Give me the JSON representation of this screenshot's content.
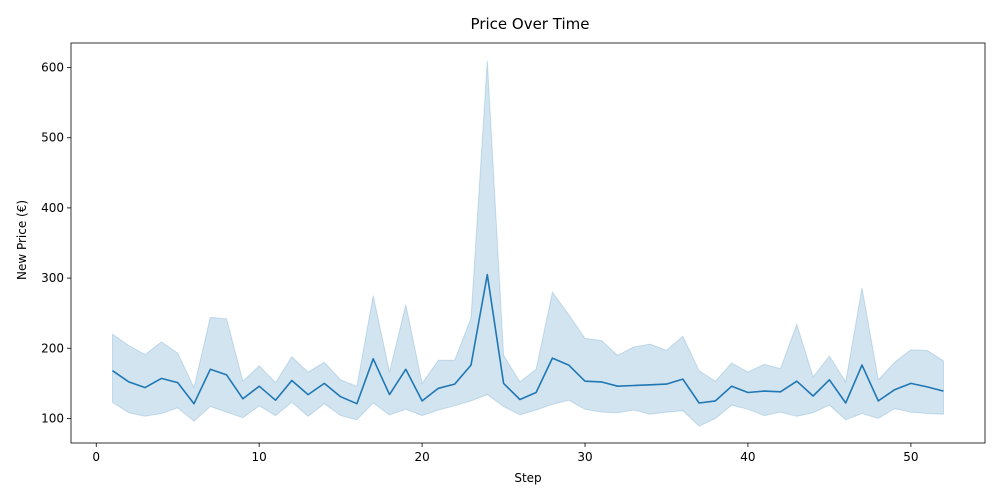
{
  "chart_data": {
    "type": "line",
    "title": "Price Over Time",
    "xlabel": "Step",
    "ylabel": "New Price (€)",
    "xlim": [
      -1.55,
      54.55
    ],
    "ylim": [
      65,
      635
    ],
    "xticks": [
      0,
      10,
      20,
      30,
      40,
      50
    ],
    "yticks": [
      100,
      200,
      300,
      400,
      500,
      600
    ],
    "grid": false,
    "line_color": "#1f77b4",
    "band_color": "#1f77b4",
    "x": [
      1,
      2,
      3,
      4,
      5,
      6,
      7,
      8,
      9,
      10,
      11,
      12,
      13,
      14,
      15,
      16,
      17,
      18,
      19,
      20,
      21,
      22,
      23,
      24,
      25,
      26,
      27,
      28,
      29,
      30,
      31,
      32,
      33,
      34,
      35,
      36,
      37,
      38,
      39,
      40,
      41,
      42,
      43,
      44,
      45,
      46,
      47,
      48,
      49,
      50,
      51,
      52
    ],
    "series": [
      {
        "values": [
          168,
          152,
          144,
          157,
          151,
          121,
          170,
          162,
          128,
          146,
          126,
          154,
          134,
          150,
          131,
          121,
          185,
          134,
          170,
          125,
          143,
          149,
          176,
          305,
          150,
          127,
          137,
          186,
          176,
          153,
          152,
          146,
          147,
          148,
          149,
          156,
          122,
          125,
          146,
          137,
          139,
          138,
          153,
          132,
          155,
          122,
          176,
          125,
          141,
          150,
          145,
          139
        ],
        "lower": [
          123,
          108,
          103,
          107,
          115,
          96,
          117,
          109,
          101,
          118,
          104,
          123,
          103,
          121,
          104,
          98,
          122,
          105,
          113,
          104,
          112,
          118,
          125,
          134,
          117,
          105,
          112,
          120,
          126,
          113,
          109,
          108,
          112,
          106,
          109,
          111,
          89,
          100,
          119,
          113,
          104,
          109,
          103,
          108,
          119,
          98,
          107,
          100,
          114,
          109,
          107,
          106
        ],
        "upper": [
          220,
          204,
          191,
          209,
          193,
          144,
          244,
          242,
          153,
          175,
          151,
          188,
          166,
          180,
          155,
          146,
          275,
          166,
          262,
          150,
          183,
          183,
          243,
          610,
          190,
          152,
          170,
          280,
          248,
          214,
          211,
          190,
          202,
          206,
          197,
          217,
          168,
          153,
          179,
          166,
          177,
          171,
          234,
          159,
          189,
          152,
          286,
          155,
          180,
          198,
          197,
          182
        ]
      }
    ]
  }
}
